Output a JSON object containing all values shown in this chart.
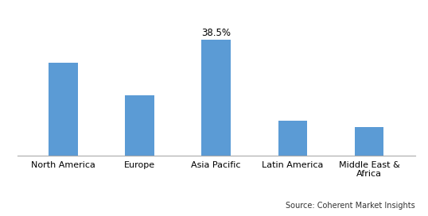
{
  "categories": [
    "North America",
    "Europe",
    "Asia Pacific",
    "Latin America",
    "Middle East &\nAfrica"
  ],
  "values": [
    31.0,
    20.0,
    38.5,
    11.5,
    9.5
  ],
  "bar_color": "#5B9BD5",
  "label_value": "38.5%",
  "label_index": 2,
  "ylim": [
    0,
    46
  ],
  "source_text": "Source: Coherent Market Insights",
  "background_color": "#ffffff",
  "bar_width": 0.38,
  "label_fontsize": 8.5,
  "tick_fontsize": 8,
  "source_fontsize": 7
}
